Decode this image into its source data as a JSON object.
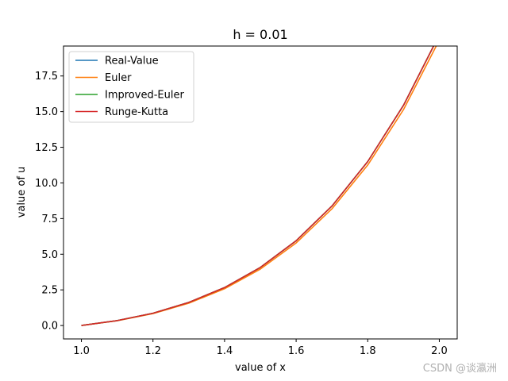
{
  "chart_data": {
    "type": "line",
    "title": "h = 0.01",
    "xlabel": "value of x",
    "ylabel": "value of u",
    "xlim": [
      0.95,
      2.05
    ],
    "ylim": [
      -0.94,
      19.6
    ],
    "x_ticks": [
      "1.0",
      "1.2",
      "1.4",
      "1.6",
      "1.8",
      "2.0"
    ],
    "x_tick_values": [
      1.0,
      1.2,
      1.4,
      1.6,
      1.8,
      2.0
    ],
    "y_ticks": [
      "0.0",
      "2.5",
      "5.0",
      "7.5",
      "10.0",
      "12.5",
      "15.0",
      "17.5"
    ],
    "y_tick_values": [
      0,
      2.5,
      5.0,
      7.5,
      10.0,
      12.5,
      15.0,
      17.5
    ],
    "grid": false,
    "legend_position": "top-left",
    "x": [
      1.0,
      1.1,
      1.2,
      1.3,
      1.4,
      1.5,
      1.6,
      1.7,
      1.8,
      1.9,
      2.0
    ],
    "series": [
      {
        "name": "Real-Value",
        "color": "#1f77b4",
        "values": [
          0.0,
          0.345,
          0.866,
          1.618,
          2.662,
          4.074,
          5.944,
          8.38,
          11.501,
          15.45,
          20.389
        ]
      },
      {
        "name": "Euler",
        "color": "#ff7f0e",
        "values": [
          0.0,
          0.333,
          0.835,
          1.563,
          2.579,
          3.96,
          5.791,
          8.183,
          11.254,
          15.147,
          20.025
        ]
      },
      {
        "name": "Improved-Euler",
        "color": "#2ca02c",
        "values": [
          0.0,
          0.345,
          0.866,
          1.618,
          2.662,
          4.074,
          5.944,
          8.38,
          11.501,
          15.45,
          20.389
        ]
      },
      {
        "name": "Runge-Kutta",
        "color": "#d62728",
        "values": [
          0.0,
          0.345,
          0.866,
          1.618,
          2.662,
          4.074,
          5.944,
          8.38,
          11.501,
          15.45,
          20.389
        ]
      }
    ]
  },
  "watermark": "CSDN @谈瀛洲"
}
